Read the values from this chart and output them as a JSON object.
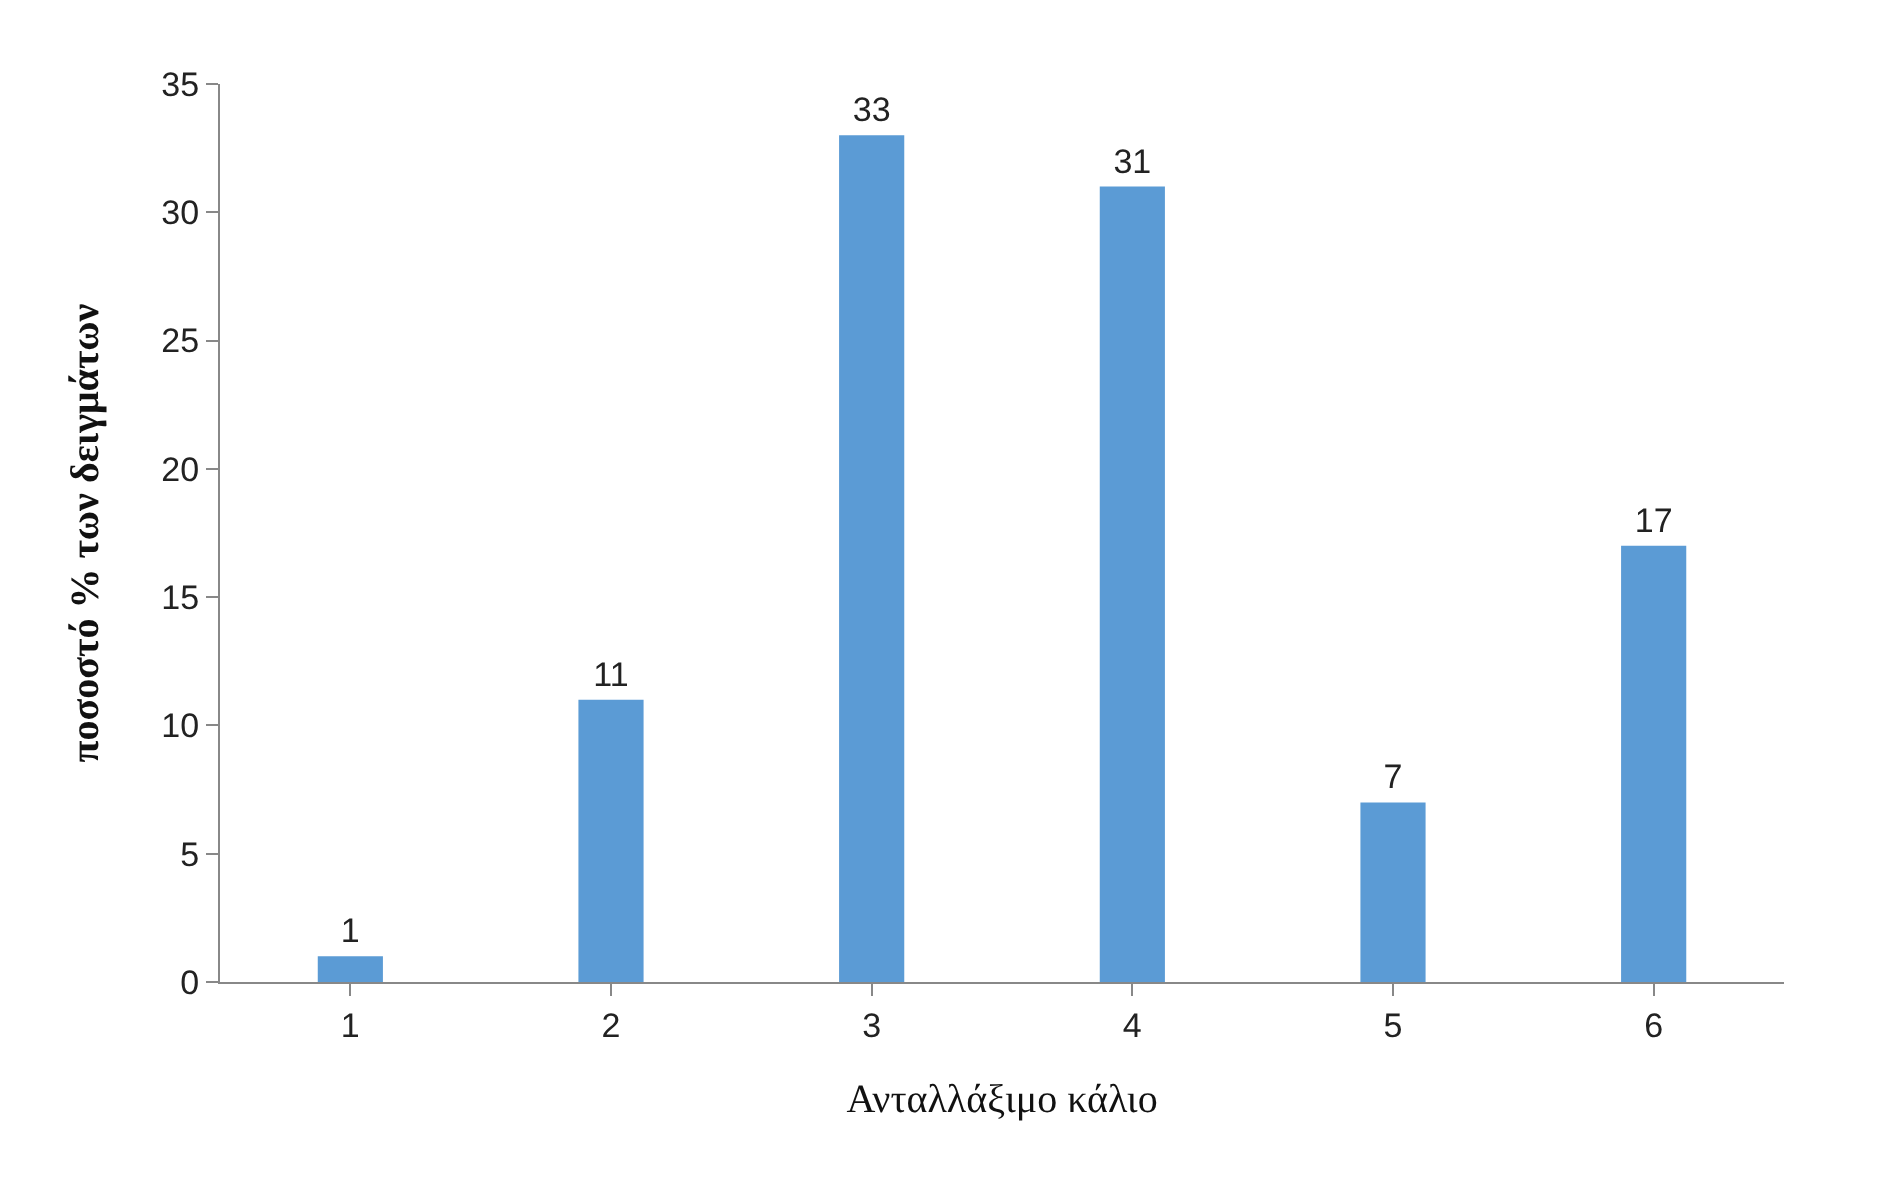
{
  "chart_data": {
    "type": "bar",
    "xlabel": "Ανταλλάξιμο κάλιο",
    "ylabel": "ποσοστό % των δειγμάτων",
    "categories": [
      "1",
      "2",
      "3",
      "4",
      "5",
      "6"
    ],
    "values": [
      1,
      11,
      33,
      31,
      7,
      17
    ],
    "color": "#5b9bd5",
    "ylim": [
      0,
      35
    ],
    "yticks": [
      0,
      5,
      10,
      15,
      20,
      25,
      30,
      35
    ],
    "grid": false,
    "data_labels": true,
    "legend": false
  }
}
